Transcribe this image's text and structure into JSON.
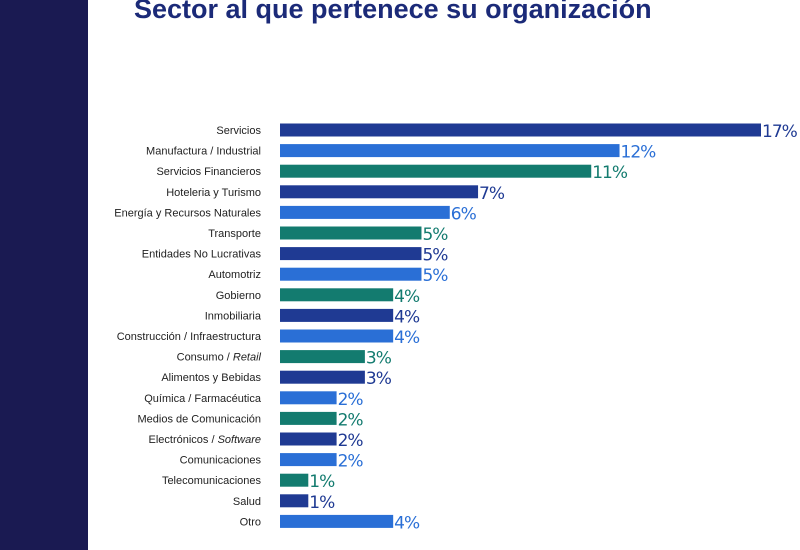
{
  "title": "Sector al que pertenece su organización",
  "colors": {
    "side_band": "#1a1a52",
    "title": "#1b2a78",
    "navy": "#1f3a93",
    "blue": "#2a6fd6",
    "teal": "#137b6f"
  },
  "chart_data": {
    "type": "bar",
    "orientation": "horizontal",
    "title": "Sector al que pertenece su organización",
    "xlabel": "",
    "ylabel": "",
    "grid": false,
    "legend": "none",
    "value_suffix": "%",
    "categories": [
      "Servicios",
      "Manufactura / Industrial",
      "Servicios Financieros",
      "Hoteleria y Turismo",
      "Energía y Recursos Naturales",
      "Transporte",
      "Entidades No Lucrativas",
      "Automotriz",
      "Gobierno",
      "Inmobiliaria",
      "Construcción / Infraestructura",
      "Consumo / Retail",
      "Alimentos y Bebidas",
      "Química / Farmacéutica",
      "Medios de Comunicación",
      "Electrónicos / Software",
      "Comunicaciones",
      "Telecomunicaciones",
      "Salud",
      "Otro"
    ],
    "values": [
      17,
      12,
      11,
      7,
      6,
      5,
      5,
      5,
      4,
      4,
      4,
      3,
      3,
      2,
      2,
      2,
      2,
      1,
      1,
      4
    ],
    "bar_colors": [
      "navy",
      "blue",
      "teal",
      "navy",
      "blue",
      "teal",
      "navy",
      "blue",
      "teal",
      "navy",
      "blue",
      "teal",
      "navy",
      "blue",
      "teal",
      "navy",
      "blue",
      "teal",
      "navy",
      "blue"
    ]
  }
}
